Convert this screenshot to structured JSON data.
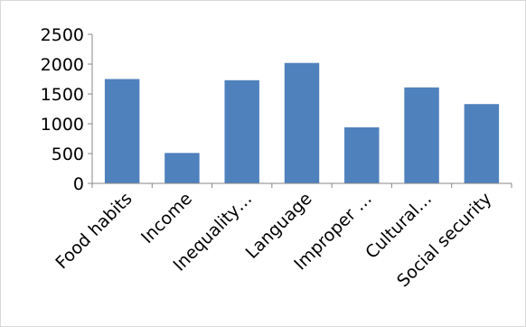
{
  "chart_data": {
    "type": "bar",
    "categories": [
      "Food habits",
      "Income",
      "Inequality…",
      "Language",
      "Improper …",
      "Cultural…",
      "Social security"
    ],
    "values": [
      1750,
      510,
      1730,
      2020,
      940,
      1610,
      1330
    ],
    "ylim": [
      0,
      2500
    ],
    "yticks": [
      0,
      500,
      1000,
      1500,
      2000,
      2500
    ],
    "ytick_labels": [
      "0",
      "500",
      "1000",
      "1500",
      "2000",
      "2500"
    ],
    "grid": false,
    "legend": "none",
    "title": "",
    "xlabel": "",
    "ylabel": "",
    "colors": {
      "bar": "#4f81bd",
      "axis": "#878787",
      "frame": "#d9d9d9"
    }
  }
}
